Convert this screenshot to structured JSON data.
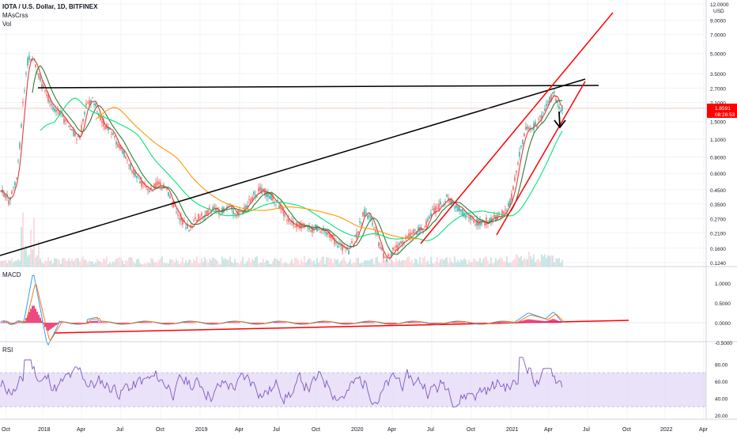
{
  "header": {
    "symbol_line": "IOTA / U.S. Dollar, 1D, BITFINEX",
    "indicators": [
      "MAsCrss",
      "Vol"
    ]
  },
  "price_axis": {
    "unit_label": "USD",
    "ticks": [
      "12.0000",
      "9.0000",
      "7.0000",
      "5.0000",
      "3.5000",
      "2.7000",
      "2.1000",
      "1.5000",
      "1.1000",
      "0.8000",
      "0.6000",
      "0.4500",
      "0.3500",
      "0.2700",
      "0.2100",
      "0.1600",
      "0.1240"
    ],
    "last_price": "1.8591",
    "countdown": "08:28:53"
  },
  "macd_panel": {
    "label": "MACD",
    "ticks": [
      "1.0000",
      "0.5000",
      "0.0000",
      "-0.5000"
    ]
  },
  "rsi_panel": {
    "label": "RSI",
    "ticks": [
      "80.00",
      "60.00",
      "40.00",
      "20.00"
    ]
  },
  "time_axis": {
    "labels": [
      "Oct",
      "2018",
      "Apr",
      "Jul",
      "Oct",
      "2019",
      "Apr",
      "Jul",
      "Oct",
      "2020",
      "Apr",
      "Jul",
      "Oct",
      "2021",
      "Apr",
      "Jul",
      "Oct",
      "2022",
      "Apr"
    ]
  },
  "colors": {
    "candle_up": "#26a69a",
    "candle_down": "#ef5350",
    "ma_fast": "#2e7d32",
    "ma_red": "#e53935",
    "ma_orange": "#ff9800",
    "ma_green_light": "#00e676",
    "trend_black": "#000000",
    "trend_red": "#ff0000",
    "macd_line": "#2196f3",
    "signal_line": "#ff6d00",
    "hist": "#e91e63",
    "rsi_line": "#7e57c2",
    "rsi_band": "#e1d5f5",
    "price_tag": "#ff0000"
  },
  "chart_data": [
    {
      "type": "line",
      "panel": "price",
      "series_kind": "candles",
      "scale": "log",
      "x": [
        "2017-10",
        "2017-12",
        "2018-01",
        "2018-04",
        "2018-07",
        "2018-10",
        "2019-01",
        "2019-04",
        "2019-07",
        "2019-10",
        "2020-01",
        "2020-03",
        "2020-07",
        "2020-10",
        "2021-01",
        "2021-03",
        "2021-04",
        "2021-05"
      ],
      "y": [
        0.4,
        5.0,
        3.5,
        1.8,
        1.2,
        0.55,
        0.3,
        0.35,
        0.45,
        0.25,
        0.22,
        0.13,
        0.22,
        0.27,
        0.3,
        1.6,
        2.6,
        1.86
      ],
      "ylim": [
        0.124,
        12.0
      ]
    },
    {
      "type": "line",
      "panel": "macd",
      "series": [
        {
          "values": [
            0.0,
            0.9,
            0.3,
            -0.4,
            0.05,
            0.0,
            0.0,
            0.0,
            0.0,
            0.0,
            0.0,
            0.0,
            0.0,
            0.0,
            0.0,
            0.25,
            0.1,
            0.0
          ]
        },
        {
          "values": [
            0.0,
            0.7,
            0.4,
            -0.2,
            0.03,
            0.0,
            0.0,
            0.0,
            0.0,
            0.0,
            0.0,
            0.0,
            0.0,
            0.0,
            0.0,
            0.15,
            0.12,
            0.02
          ]
        }
      ],
      "ylim": [
        -0.5,
        1.0
      ]
    },
    {
      "type": "line",
      "panel": "rsi",
      "series": [
        {
          "values": [
            45,
            80,
            60,
            50,
            65,
            30,
            40,
            55,
            60,
            35,
            50,
            25,
            55,
            45,
            60,
            85,
            70,
            45
          ]
        }
      ],
      "band": [
        30,
        70
      ],
      "ylim": [
        15,
        95
      ]
    }
  ]
}
